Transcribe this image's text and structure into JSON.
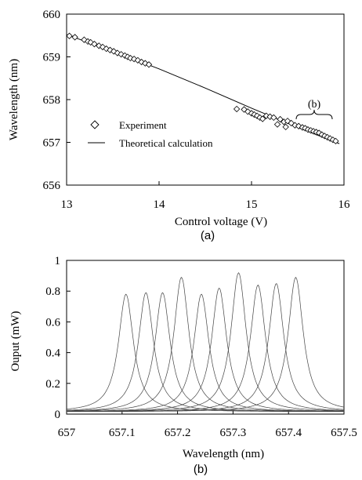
{
  "chart_data": [
    {
      "type": "scatter",
      "panel_label": "(a)",
      "title": "",
      "xlabel": "Control voltage    (V)",
      "ylabel": "Wavelength  (nm)",
      "xlim": [
        13,
        16
      ],
      "ylim": [
        656,
        660
      ],
      "xticks": [
        "13",
        "14",
        "15",
        "16"
      ],
      "yticks": [
        "656",
        "657",
        "658",
        "659",
        "660"
      ],
      "grid": false,
      "legend": {
        "placement": "bottom-left",
        "entries": [
          "Experiment",
          "Theoretical calculation"
        ]
      },
      "annotation": "(b)",
      "series": [
        {
          "name": "Experiment",
          "marker": "diamond",
          "x": [
            13.03,
            13.09,
            13.19,
            13.23,
            13.26,
            13.3,
            13.35,
            13.39,
            13.43,
            13.47,
            13.51,
            13.55,
            13.59,
            13.63,
            13.66,
            13.69,
            13.73,
            13.77,
            13.81,
            13.85,
            13.89,
            14.84,
            14.92,
            14.96,
            15.0,
            15.03,
            15.06,
            15.09,
            15.12,
            15.16,
            15.2,
            15.24,
            15.28,
            15.31,
            15.35,
            15.37,
            15.39,
            15.43,
            15.47,
            15.51,
            15.55,
            15.58,
            15.61,
            15.64,
            15.67,
            15.7,
            15.73,
            15.76,
            15.79,
            15.82,
            15.85,
            15.88,
            15.91
          ],
          "y": [
            659.49,
            659.46,
            659.4,
            659.36,
            659.34,
            659.3,
            659.26,
            659.23,
            659.19,
            659.16,
            659.13,
            659.09,
            659.06,
            659.03,
            659.0,
            658.97,
            658.95,
            658.92,
            658.88,
            658.85,
            658.82,
            657.78,
            657.77,
            657.72,
            657.68,
            657.65,
            657.62,
            657.58,
            657.55,
            657.62,
            657.6,
            657.58,
            657.42,
            657.54,
            657.48,
            657.36,
            657.5,
            657.45,
            657.4,
            657.38,
            657.35,
            657.33,
            657.3,
            657.28,
            657.26,
            657.24,
            657.22,
            657.18,
            657.15,
            657.12,
            657.09,
            657.06,
            657.03
          ]
        },
        {
          "name": "Theoretical calculation",
          "type": "line",
          "x": [
            13.0,
            13.5,
            14.0,
            14.5,
            15.0,
            15.5,
            15.95
          ],
          "y": [
            659.52,
            659.13,
            658.72,
            658.27,
            657.8,
            657.35,
            656.97
          ]
        }
      ]
    },
    {
      "type": "line",
      "panel_label": "(b)",
      "title": "",
      "xlabel": "Wavelength      (nm)",
      "ylabel": "Ouput    (mW)",
      "xlim": [
        657,
        657.5
      ],
      "ylim": [
        0,
        1
      ],
      "xticks": [
        "657",
        "657.1",
        "657.2",
        "657.3",
        "657.4",
        "657.5"
      ],
      "yticks": [
        "0",
        "0.2",
        "0.4",
        "0.6",
        "0.8",
        "1"
      ],
      "grid": false,
      "peaks": [
        {
          "center": 657.107,
          "peak": 0.78
        },
        {
          "center": 657.143,
          "peak": 0.79
        },
        {
          "center": 657.173,
          "peak": 0.79
        },
        {
          "center": 657.207,
          "peak": 0.89
        },
        {
          "center": 657.243,
          "peak": 0.78
        },
        {
          "center": 657.275,
          "peak": 0.82
        },
        {
          "center": 657.31,
          "peak": 0.92
        },
        {
          "center": 657.345,
          "peak": 0.84
        },
        {
          "center": 657.378,
          "peak": 0.85
        },
        {
          "center": 657.413,
          "peak": 0.89
        }
      ]
    }
  ]
}
